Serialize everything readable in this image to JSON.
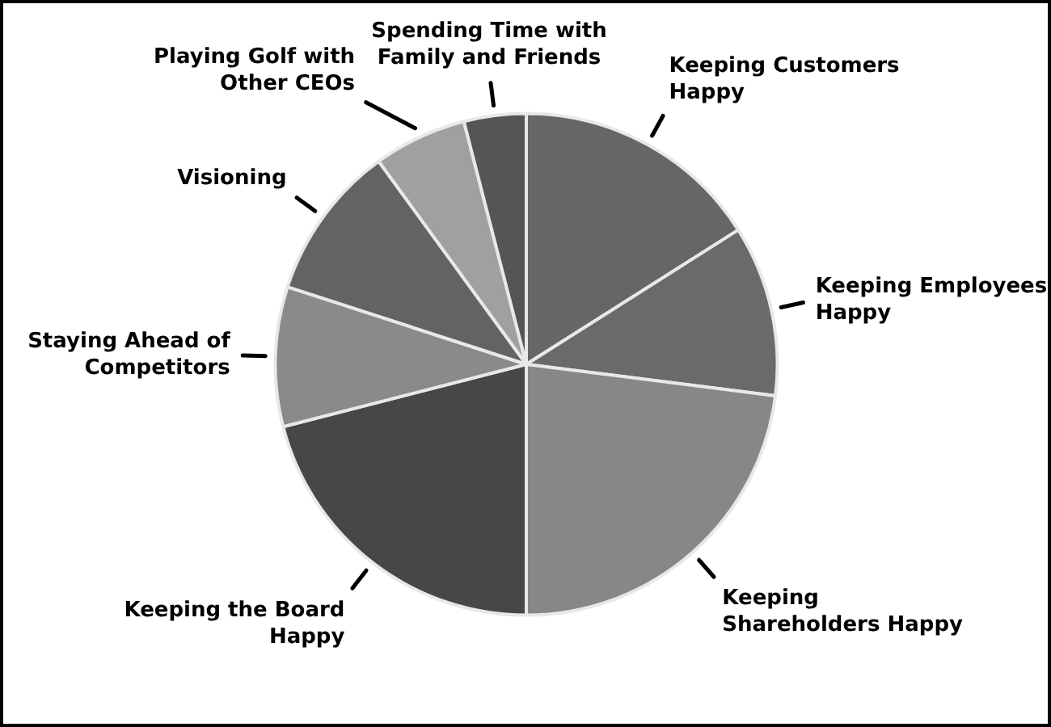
{
  "chart_data": {
    "type": "pie",
    "categories": [
      "Keeping Customers Happy",
      "Keeping Employees Happy",
      "Keeping Shareholders Happy",
      "Keeping the Board Happy",
      "Staying Ahead of Competitors",
      "Visioning",
      "Playing Golf with Other CEOs",
      "Spending Time with Family and Friends"
    ],
    "values": [
      16,
      11,
      23,
      21,
      9,
      10,
      6,
      4
    ],
    "colors": [
      "#666666",
      "#6a6a6a",
      "#878787",
      "#474747",
      "#8a8a8a",
      "#636363",
      "#a0a0a0",
      "#555555"
    ]
  }
}
